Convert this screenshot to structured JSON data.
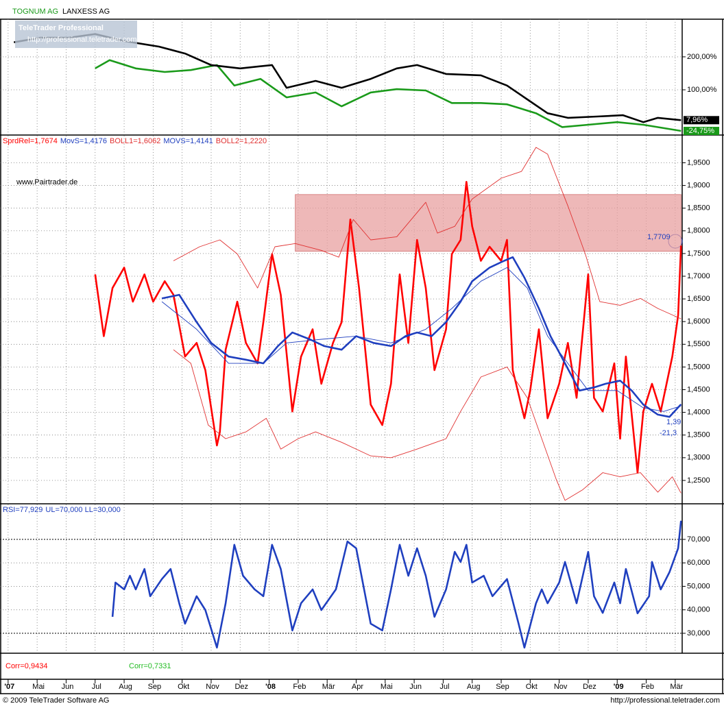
{
  "chart_data": [
    {
      "type": "line",
      "ylim": [
        -33,
        310
      ],
      "yticks": [
        {
          "value": 100,
          "label": "100,00%"
        },
        {
          "value": 200,
          "label": "200,00%"
        }
      ],
      "grid": true,
      "series": [
        {
          "name": "TOGNUM AG",
          "color": "#1a9a1a",
          "weight": "thick",
          "x": [
            3.0,
            3.5,
            4.4,
            5.4,
            6.3,
            7.2,
            7.8,
            8.7,
            9.6,
            10.6,
            11.5,
            12.5,
            13.4,
            14.4,
            15.3,
            16.3,
            17.2,
            18.2,
            19.1,
            20.0,
            21.0,
            21.9,
            23.2
          ],
          "values": [
            165,
            190,
            165,
            154,
            160,
            175,
            113,
            133,
            77,
            92,
            50,
            92,
            102,
            98,
            60,
            60,
            56,
            29,
            -13,
            -6,
            2,
            -6,
            -24.75
          ],
          "value_labels": [
            null,
            null,
            null,
            null,
            null,
            null,
            null,
            null,
            null,
            null,
            null,
            null,
            null,
            null,
            null,
            null,
            null,
            null,
            null,
            null,
            null,
            null,
            "-24,75%"
          ]
        },
        {
          "name": "LANXESS AG",
          "color": "#000000",
          "weight": "thick",
          "x": [
            0.2,
            1.1,
            2.1,
            3.0,
            4.0,
            5.2,
            6.1,
            7.0,
            8.0,
            9.1,
            9.6,
            10.6,
            11.5,
            12.5,
            13.4,
            14.1,
            15.1,
            16.3,
            17.2,
            17.9,
            18.6,
            19.3,
            20.3,
            21.2,
            21.9,
            22.4,
            23.2
          ],
          "values": [
            244,
            258,
            258,
            269,
            248,
            231,
            210,
            175,
            165,
            175,
            106,
            127,
            106,
            133,
            165,
            175,
            148,
            144,
            113,
            71,
            29,
            15,
            19,
            23,
            2,
            15,
            7.96
          ],
          "value_labels": [
            null,
            null,
            null,
            null,
            null,
            null,
            null,
            null,
            null,
            null,
            null,
            null,
            null,
            null,
            null,
            null,
            null,
            null,
            null,
            null,
            null,
            null,
            null,
            null,
            null,
            null,
            "7,96%"
          ]
        }
      ]
    },
    {
      "type": "line",
      "ylim": [
        1.2,
        1.99
      ],
      "yticks": [
        {
          "value": 1.25,
          "label": "1,2500"
        },
        {
          "value": 1.3,
          "label": "1,3000"
        },
        {
          "value": 1.35,
          "label": "1,3500"
        },
        {
          "value": 1.4,
          "label": "1,4000"
        },
        {
          "value": 1.45,
          "label": "1,4500"
        },
        {
          "value": 1.5,
          "label": "1,5000"
        },
        {
          "value": 1.55,
          "label": "1,5500"
        },
        {
          "value": 1.6,
          "label": "1,6000"
        },
        {
          "value": 1.65,
          "label": "1,6500"
        },
        {
          "value": 1.7,
          "label": "1,7000"
        },
        {
          "value": 1.75,
          "label": "1,7500"
        },
        {
          "value": 1.8,
          "label": "1,8000"
        },
        {
          "value": 1.85,
          "label": "1,8500"
        },
        {
          "value": 1.9,
          "label": "1,9000"
        },
        {
          "value": 1.95,
          "label": "1,9500"
        }
      ],
      "grid": true,
      "zone": {
        "xlim": [
          9.9,
          23.2
        ],
        "ylim": [
          1.755,
          1.88
        ],
        "color": "#e8a0a0"
      },
      "annotations": [
        "www.Pairtrader.de",
        "1,7709",
        "1,39",
        "-21,3"
      ],
      "series": [
        {
          "name": "SprdRel=1,7674",
          "color": "#ff0000",
          "weight": "thick",
          "x": [
            3.0,
            3.3,
            3.6,
            4.0,
            4.3,
            4.7,
            5.0,
            5.4,
            5.7,
            6.1,
            6.5,
            6.8,
            7.2,
            7.3,
            7.5,
            7.9,
            8.2,
            8.6,
            8.8,
            9.1,
            9.4,
            9.8,
            10.1,
            10.5,
            10.8,
            11.2,
            11.5,
            11.8,
            12.1,
            12.5,
            12.9,
            13.2,
            13.5,
            13.8,
            14.1,
            14.4,
            14.7,
            15.1,
            15.3,
            15.6,
            15.8,
            16.0,
            16.3,
            16.6,
            17.0,
            17.2,
            17.4,
            17.8,
            18.0,
            18.3,
            18.6,
            19.0,
            19.3,
            19.6,
            20.0,
            20.2,
            20.5,
            20.9,
            21.1,
            21.3,
            21.7,
            21.9,
            22.2,
            22.5,
            22.9,
            23.1,
            23.2
          ],
          "values": [
            1.704,
            1.568,
            1.674,
            1.719,
            1.644,
            1.704,
            1.644,
            1.689,
            1.659,
            1.523,
            1.553,
            1.493,
            1.327,
            1.357,
            1.538,
            1.644,
            1.553,
            1.508,
            1.599,
            1.749,
            1.659,
            1.402,
            1.523,
            1.583,
            1.463,
            1.553,
            1.599,
            1.825,
            1.674,
            1.417,
            1.372,
            1.463,
            1.704,
            1.553,
            1.78,
            1.674,
            1.493,
            1.583,
            1.749,
            1.78,
            1.908,
            1.81,
            1.734,
            1.765,
            1.734,
            1.78,
            1.493,
            1.387,
            1.448,
            1.583,
            1.387,
            1.463,
            1.553,
            1.432,
            1.704,
            1.432,
            1.402,
            1.508,
            1.342,
            1.523,
            1.267,
            1.402,
            1.463,
            1.402,
            1.523,
            1.614,
            1.7674
          ]
        },
        {
          "name": "MovS=1,4176",
          "color": "#1f3fbf",
          "weight": "thick",
          "x": [
            5.3,
            5.9,
            6.5,
            7.0,
            7.6,
            8.2,
            8.8,
            9.3,
            9.8,
            10.4,
            10.9,
            11.5,
            12.0,
            12.6,
            13.2,
            13.7,
            14.1,
            14.6,
            15.1,
            15.6,
            16.0,
            16.6,
            17.1,
            17.4,
            17.8,
            18.3,
            18.7,
            19.2,
            19.7,
            20.2,
            20.6,
            21.1,
            21.5,
            21.9,
            22.4,
            22.8,
            23.2
          ],
          "values": [
            1.651,
            1.659,
            1.599,
            1.553,
            1.523,
            1.516,
            1.508,
            1.546,
            1.576,
            1.561,
            1.546,
            1.538,
            1.568,
            1.553,
            1.546,
            1.568,
            1.576,
            1.568,
            1.599,
            1.644,
            1.689,
            1.719,
            1.734,
            1.742,
            1.697,
            1.629,
            1.568,
            1.508,
            1.448,
            1.455,
            1.463,
            1.47,
            1.448,
            1.417,
            1.395,
            1.39,
            1.4176
          ]
        },
        {
          "name": "BOLL1=1,6062",
          "color": "#e03030",
          "weight": "thin",
          "x": [
            5.7,
            6.6,
            7.3,
            7.9,
            8.6,
            9.2,
            9.9,
            10.8,
            11.4,
            11.9,
            12.5,
            13.4,
            14.4,
            14.8,
            15.4,
            16.0,
            17.0,
            17.7,
            18.2,
            18.6,
            19.3,
            19.9,
            20.4,
            21.1,
            21.8,
            22.4,
            23.2
          ],
          "values": [
            1.734,
            1.765,
            1.78,
            1.749,
            1.674,
            1.765,
            1.772,
            1.757,
            1.742,
            1.825,
            1.78,
            1.787,
            1.863,
            1.795,
            1.81,
            1.87,
            1.916,
            1.931,
            1.984,
            1.969,
            1.855,
            1.749,
            1.644,
            1.636,
            1.651,
            1.629,
            1.6062
          ]
        },
        {
          "name": "MOVS=1,4141",
          "color": "#1f3fbf",
          "weight": "thin",
          "x": [
            5.3,
            6.5,
            7.6,
            8.8,
            9.6,
            10.8,
            12.0,
            13.2,
            14.4,
            15.3,
            16.3,
            17.2,
            17.9,
            18.6,
            19.3,
            20.0,
            21.0,
            21.9,
            22.6,
            23.2
          ],
          "values": [
            1.644,
            1.583,
            1.508,
            1.508,
            1.553,
            1.561,
            1.568,
            1.553,
            1.583,
            1.629,
            1.689,
            1.719,
            1.674,
            1.568,
            1.508,
            1.448,
            1.448,
            1.41,
            1.402,
            1.4141
          ]
        },
        {
          "name": "BOLL2=1,2220",
          "color": "#e03030",
          "weight": "thin",
          "x": [
            5.7,
            6.3,
            6.9,
            7.5,
            8.2,
            8.9,
            9.4,
            10.0,
            10.6,
            11.5,
            12.5,
            13.2,
            14.1,
            15.1,
            15.6,
            16.3,
            17.2,
            17.9,
            18.4,
            18.9,
            19.2,
            19.8,
            20.5,
            21.1,
            21.8,
            22.4,
            22.9,
            23.2
          ],
          "values": [
            1.538,
            1.508,
            1.372,
            1.342,
            1.357,
            1.387,
            1.319,
            1.342,
            1.357,
            1.334,
            1.304,
            1.3,
            1.319,
            1.342,
            1.402,
            1.478,
            1.5,
            1.432,
            1.342,
            1.252,
            1.206,
            1.229,
            1.267,
            1.258,
            1.267,
            1.224,
            1.258,
            1.222
          ]
        }
      ]
    },
    {
      "type": "line",
      "ylim": [
        21.8,
        80.2
      ],
      "yticks": [
        {
          "value": 30,
          "label": "30,000"
        },
        {
          "value": 40,
          "label": "40,000"
        },
        {
          "value": 50,
          "label": "50,000"
        },
        {
          "value": 60,
          "label": "60,000"
        },
        {
          "value": 70,
          "label": "70,000"
        }
      ],
      "grid": true,
      "bands": {
        "label": "UL=70,000 LL=30,000",
        "values": [
          70,
          30
        ]
      },
      "series": [
        {
          "name": "RSI=77,929",
          "color": "#1f3fbf",
          "weight": "thick",
          "x": [
            3.6,
            3.7,
            4.0,
            4.2,
            4.4,
            4.7,
            4.9,
            5.3,
            5.6,
            5.9,
            6.1,
            6.5,
            6.8,
            7.2,
            7.5,
            7.8,
            8.1,
            8.5,
            8.8,
            9.1,
            9.4,
            9.8,
            10.1,
            10.5,
            10.8,
            11.3,
            11.7,
            12.0,
            12.5,
            12.9,
            13.2,
            13.5,
            13.8,
            14.1,
            14.4,
            14.7,
            15.1,
            15.4,
            15.6,
            15.8,
            16.0,
            16.4,
            16.7,
            17.2,
            17.6,
            17.8,
            18.2,
            18.4,
            18.6,
            19.0,
            19.2,
            19.6,
            20.0,
            20.2,
            20.5,
            20.9,
            21.1,
            21.3,
            21.7,
            22.1,
            22.2,
            22.5,
            22.8,
            23.1,
            23.2
          ],
          "values": [
            37.0,
            51.6,
            48.7,
            54.5,
            48.7,
            57.4,
            45.8,
            53.1,
            57.4,
            42.8,
            34.1,
            45.8,
            39.9,
            23.9,
            42.8,
            67.7,
            54.5,
            48.7,
            45.8,
            67.7,
            57.4,
            31.2,
            42.8,
            48.7,
            39.9,
            48.7,
            69.1,
            66.2,
            34.1,
            31.2,
            48.7,
            67.7,
            54.5,
            66.2,
            54.5,
            37.0,
            48.7,
            64.7,
            60.4,
            67.7,
            51.6,
            54.5,
            45.8,
            53.1,
            34.1,
            23.9,
            42.8,
            48.7,
            42.8,
            51.6,
            60.4,
            42.8,
            64.7,
            45.8,
            38.7,
            51.6,
            42.8,
            57.4,
            38.5,
            45.8,
            60.4,
            48.7,
            56.0,
            66.2,
            77.929
          ]
        }
      ]
    }
  ],
  "x_axis": {
    "xlim": [
      -0.28,
      23.24
    ],
    "xticks": [
      {
        "value": 0,
        "label": "'07"
      },
      {
        "value": 1,
        "label": "Mai"
      },
      {
        "value": 2,
        "label": "Jun"
      },
      {
        "value": 3,
        "label": "Jul"
      },
      {
        "value": 4,
        "label": "Aug"
      },
      {
        "value": 5,
        "label": "Sep"
      },
      {
        "value": 6,
        "label": "Okt"
      },
      {
        "value": 7,
        "label": "Nov"
      },
      {
        "value": 8,
        "label": "Dez"
      },
      {
        "value": 9,
        "label": "'08"
      },
      {
        "value": 10,
        "label": "Feb"
      },
      {
        "value": 11,
        "label": "Mär"
      },
      {
        "value": 12,
        "label": "Apr"
      },
      {
        "value": 13,
        "label": "Mai"
      },
      {
        "value": 14,
        "label": "Jun"
      },
      {
        "value": 15,
        "label": "Jul"
      },
      {
        "value": 16,
        "label": "Aug"
      },
      {
        "value": 17,
        "label": "Sep"
      },
      {
        "value": 18,
        "label": "Okt"
      },
      {
        "value": 19,
        "label": "Nov"
      },
      {
        "value": 20,
        "label": "Dez"
      },
      {
        "value": 21,
        "label": "'09"
      },
      {
        "value": 22,
        "label": "Feb"
      },
      {
        "value": 23,
        "label": "Mär"
      }
    ]
  },
  "correlations": [
    {
      "text": "Corr=0,9434",
      "color": "#ff0000"
    },
    {
      "text": "Corr=0,7331",
      "color": "#22bb22"
    }
  ],
  "watermark": [
    "TeleTrader Professional",
    "http://professional.teletrader.com"
  ],
  "footer": {
    "left": "© 2009 TeleTrader Software AG",
    "right": "http://professional.teletrader.com"
  }
}
